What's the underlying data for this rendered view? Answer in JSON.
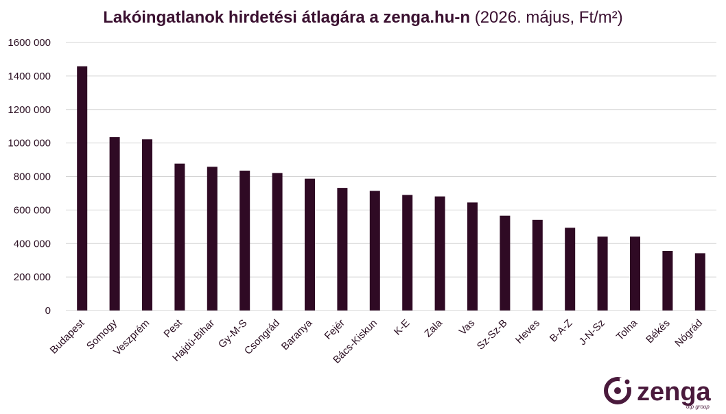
{
  "chart_data": {
    "type": "bar",
    "title": "Lakóingatlanok hirdetési átlagára a zenga.hu-n",
    "subtitle": "(2026. május, Ft/m²)",
    "categories": [
      "Budapest",
      "Somogy",
      "Veszprém",
      "Pest",
      "Hajdú-Bihar",
      "Gy-M-S",
      "Csongrád",
      "Baranya",
      "Fejér",
      "Bács-Kiskun",
      "K-E",
      "Zala",
      "Vas",
      "Sz-Sz-B",
      "Heves",
      "B-A-Z",
      "J-N-Sz",
      "Tolna",
      "Békés",
      "Nógrád"
    ],
    "values": [
      1458000,
      1035000,
      1022000,
      877000,
      858000,
      835000,
      821000,
      787000,
      732000,
      714000,
      690000,
      681000,
      645000,
      566000,
      541000,
      494000,
      441000,
      441000,
      356000,
      342000
    ],
    "ylim": [
      0,
      1600000
    ],
    "yticks": [
      0,
      200000,
      400000,
      600000,
      800000,
      1000000,
      1200000,
      1400000,
      1600000
    ],
    "ytick_labels": [
      "0",
      "200 000",
      "400 000",
      "600 000",
      "800 000",
      "1000 000",
      "1200 000",
      "1400 000",
      "1600 000"
    ],
    "xlabel": "",
    "ylabel": "",
    "grid": true,
    "bar_color": "#2f0a24"
  },
  "logo": {
    "text": "zenga",
    "tagline": "otp group",
    "icon": "zenga-logo-icon",
    "color": "#4a1a3c"
  }
}
